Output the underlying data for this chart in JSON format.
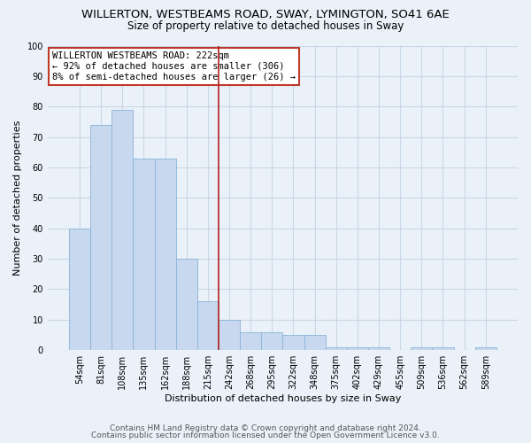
{
  "title": "WILLERTON, WESTBEAMS ROAD, SWAY, LYMINGTON, SO41 6AE",
  "subtitle": "Size of property relative to detached houses in Sway",
  "xlabel": "Distribution of detached houses by size in Sway",
  "ylabel": "Number of detached properties",
  "categories": [
    "54sqm",
    "81sqm",
    "108sqm",
    "135sqm",
    "162sqm",
    "188sqm",
    "215sqm",
    "242sqm",
    "268sqm",
    "295sqm",
    "322sqm",
    "348sqm",
    "375sqm",
    "402sqm",
    "429sqm",
    "455sqm",
    "509sqm",
    "536sqm",
    "562sqm",
    "589sqm"
  ],
  "values": [
    40,
    74,
    79,
    63,
    63,
    30,
    16,
    10,
    6,
    6,
    5,
    5,
    1,
    1,
    1,
    0,
    1,
    1,
    0,
    1
  ],
  "bar_color": "#c8d8ee",
  "bar_edge_color": "#8ab4d8",
  "bar_width": 1.0,
  "vline_color": "#b22222",
  "ylim": [
    0,
    100
  ],
  "yticks": [
    0,
    10,
    20,
    30,
    40,
    50,
    60,
    70,
    80,
    90,
    100
  ],
  "grid_color": "#c8d8e8",
  "annotation_text": "WILLERTON WESTBEAMS ROAD: 222sqm\n← 92% of detached houses are smaller (306)\n8% of semi-detached houses are larger (26) →",
  "annotation_box_color": "#ffffff",
  "annotation_box_edge": "#c0392b",
  "footnote1": "Contains HM Land Registry data © Crown copyright and database right 2024.",
  "footnote2": "Contains public sector information licensed under the Open Government Licence v3.0.",
  "fig_bg_color": "#eaf1f8",
  "title_fontsize": 9.5,
  "subtitle_fontsize": 8.5,
  "tick_fontsize": 7,
  "ylabel_fontsize": 8,
  "xlabel_fontsize": 8,
  "annot_fontsize": 7.5
}
